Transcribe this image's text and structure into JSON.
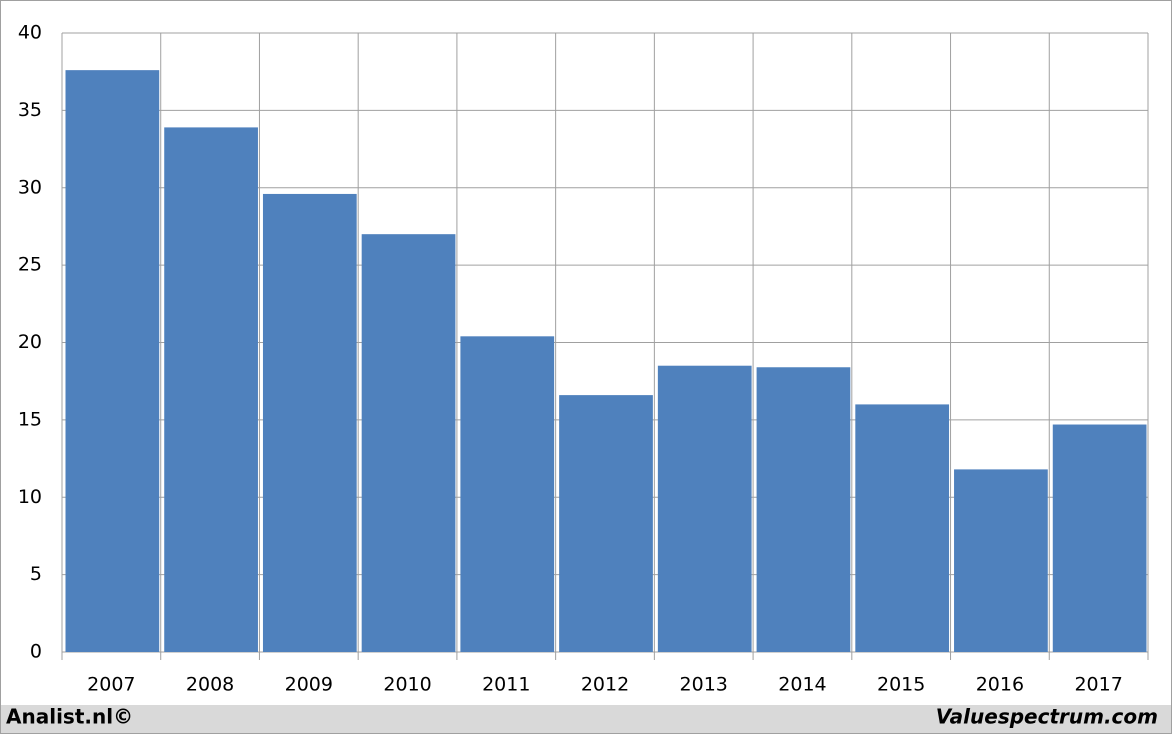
{
  "chart_data": {
    "type": "bar",
    "categories": [
      "2007",
      "2008",
      "2009",
      "2010",
      "2011",
      "2012",
      "2013",
      "2014",
      "2015",
      "2016",
      "2017"
    ],
    "values": [
      37.6,
      33.9,
      29.6,
      27.0,
      20.4,
      16.6,
      18.5,
      18.4,
      16.0,
      11.8,
      14.7
    ],
    "color": "#4f81bd",
    "ylim": [
      0,
      40
    ],
    "yticks": [
      0,
      5,
      10,
      15,
      20,
      25,
      30,
      35,
      40
    ],
    "grid": true,
    "footer_left": "Analist.nl©",
    "footer_right": "Valuespectrum.com"
  }
}
